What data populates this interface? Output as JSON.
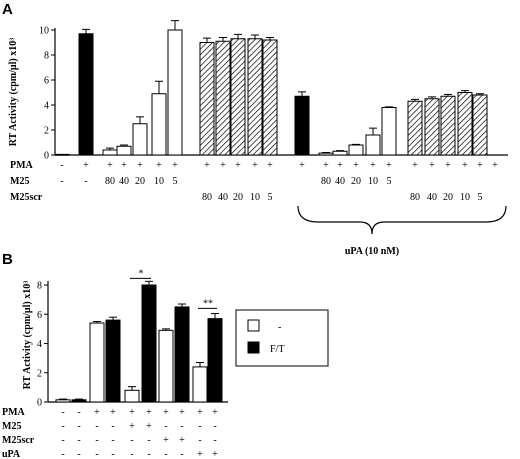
{
  "chart_data": [
    {
      "panel": "A",
      "type": "bar",
      "ylabel": "RT Activity (cpm/μl) x10³",
      "ylim": [
        0,
        10
      ],
      "yticks": [
        "0",
        "2",
        "4",
        "6",
        "8",
        "10"
      ],
      "groups": [
        {
          "values": [
            0.05,
            9.7
          ],
          "errors": [
            0,
            0.35
          ],
          "fills": [
            "white",
            "black"
          ]
        },
        {
          "values": [
            0.4,
            0.7,
            2.5,
            4.9,
            10.0
          ],
          "errors": [
            0.15,
            0.1,
            0.55,
            1.0,
            0.75
          ],
          "fills": [
            "white",
            "white",
            "white",
            "white",
            "white"
          ]
        },
        {
          "values": [
            9.0,
            9.1,
            9.3,
            9.3,
            9.2
          ],
          "errors": [
            0.35,
            0.3,
            0.35,
            0.3,
            0.2
          ],
          "fills": [
            "hatch",
            "hatch",
            "hatch",
            "hatch",
            "hatch"
          ]
        },
        {
          "values": [
            4.7
          ],
          "errors": [
            0.35
          ],
          "fills": [
            "black"
          ]
        },
        {
          "values": [
            0.15,
            0.3,
            0.8,
            1.6,
            3.8
          ],
          "errors": [
            0.05,
            0.05,
            0.05,
            0.55,
            0.05
          ],
          "fills": [
            "white",
            "white",
            "white",
            "white",
            "white"
          ]
        },
        {
          "values": [
            4.3,
            4.5,
            4.7,
            5.0,
            4.8
          ],
          "errors": [
            0.15,
            0.15,
            0.15,
            0.15,
            0.1
          ],
          "fills": [
            "hatch",
            "hatch",
            "hatch",
            "hatch",
            "hatch"
          ]
        }
      ],
      "table": {
        "rows": [
          {
            "label": "PMA",
            "cells": [
              "-",
              "+",
              "+",
              "+",
              "+",
              "+",
              "+",
              "+",
              "+",
              "+",
              "+",
              "+",
              "+",
              "+",
              "+",
              "+",
              "+",
              "+",
              "+",
              "+",
              "+",
              "+",
              "+",
              "+"
            ]
          },
          {
            "label": "M25",
            "cells": [
              "-",
              "-",
              "80",
              "40",
              "20",
              "10",
              "5",
              "",
              "",
              "",
              "",
              "",
              "",
              "80",
              "40",
              "20",
              "10",
              "5",
              "",
              "",
              "",
              "",
              "",
              ""
            ]
          },
          {
            "label": "M25scr",
            "cells": [
              "",
              "",
              "",
              "",
              "",
              "",
              "",
              "80",
              "40",
              "20",
              "10",
              "5",
              "",
              "",
              "",
              "",
              "",
              "",
              "80",
              "40",
              "20",
              "10",
              "5",
              ""
            ]
          }
        ]
      },
      "brace_label": "uPA (10 nM)"
    },
    {
      "panel": "B",
      "type": "bar",
      "ylabel": "RT Activity (cpm/μl) x10³",
      "ylim": [
        0,
        8
      ],
      "yticks": [
        "0",
        "2",
        "4",
        "6",
        "8"
      ],
      "series": [
        {
          "name": "-",
          "fill": "white",
          "values": [
            0.15,
            5.4,
            0.8,
            4.9,
            2.4
          ],
          "errors": [
            0.05,
            0.1,
            0.25,
            0.1,
            0.3
          ]
        },
        {
          "name": "F/T",
          "fill": "black",
          "values": [
            0.15,
            5.6,
            8.0,
            6.5,
            5.7
          ],
          "errors": [
            0.05,
            0.2,
            0.25,
            0.2,
            0.35
          ]
        }
      ],
      "significance": [
        "*",
        "**"
      ],
      "table": {
        "rows": [
          {
            "label": "PMA",
            "cells": [
              "-",
              "-",
              "+",
              "+",
              "+",
              "+",
              "+",
              "+",
              "+",
              "+"
            ]
          },
          {
            "label": "M25",
            "cells": [
              "-",
              "-",
              "-",
              "-",
              "+",
              "+",
              "-",
              "-",
              "-",
              "-"
            ]
          },
          {
            "label": "M25scr",
            "cells": [
              "-",
              "-",
              "-",
              "-",
              "-",
              "-",
              "+",
              "+",
              "-",
              "-"
            ]
          },
          {
            "label": "uPA",
            "cells": [
              "-",
              "-",
              "-",
              "-",
              "-",
              "-",
              "-",
              "-",
              "+",
              "+"
            ]
          }
        ]
      }
    }
  ],
  "panel_labels": {
    "a": "A",
    "b": "B"
  }
}
